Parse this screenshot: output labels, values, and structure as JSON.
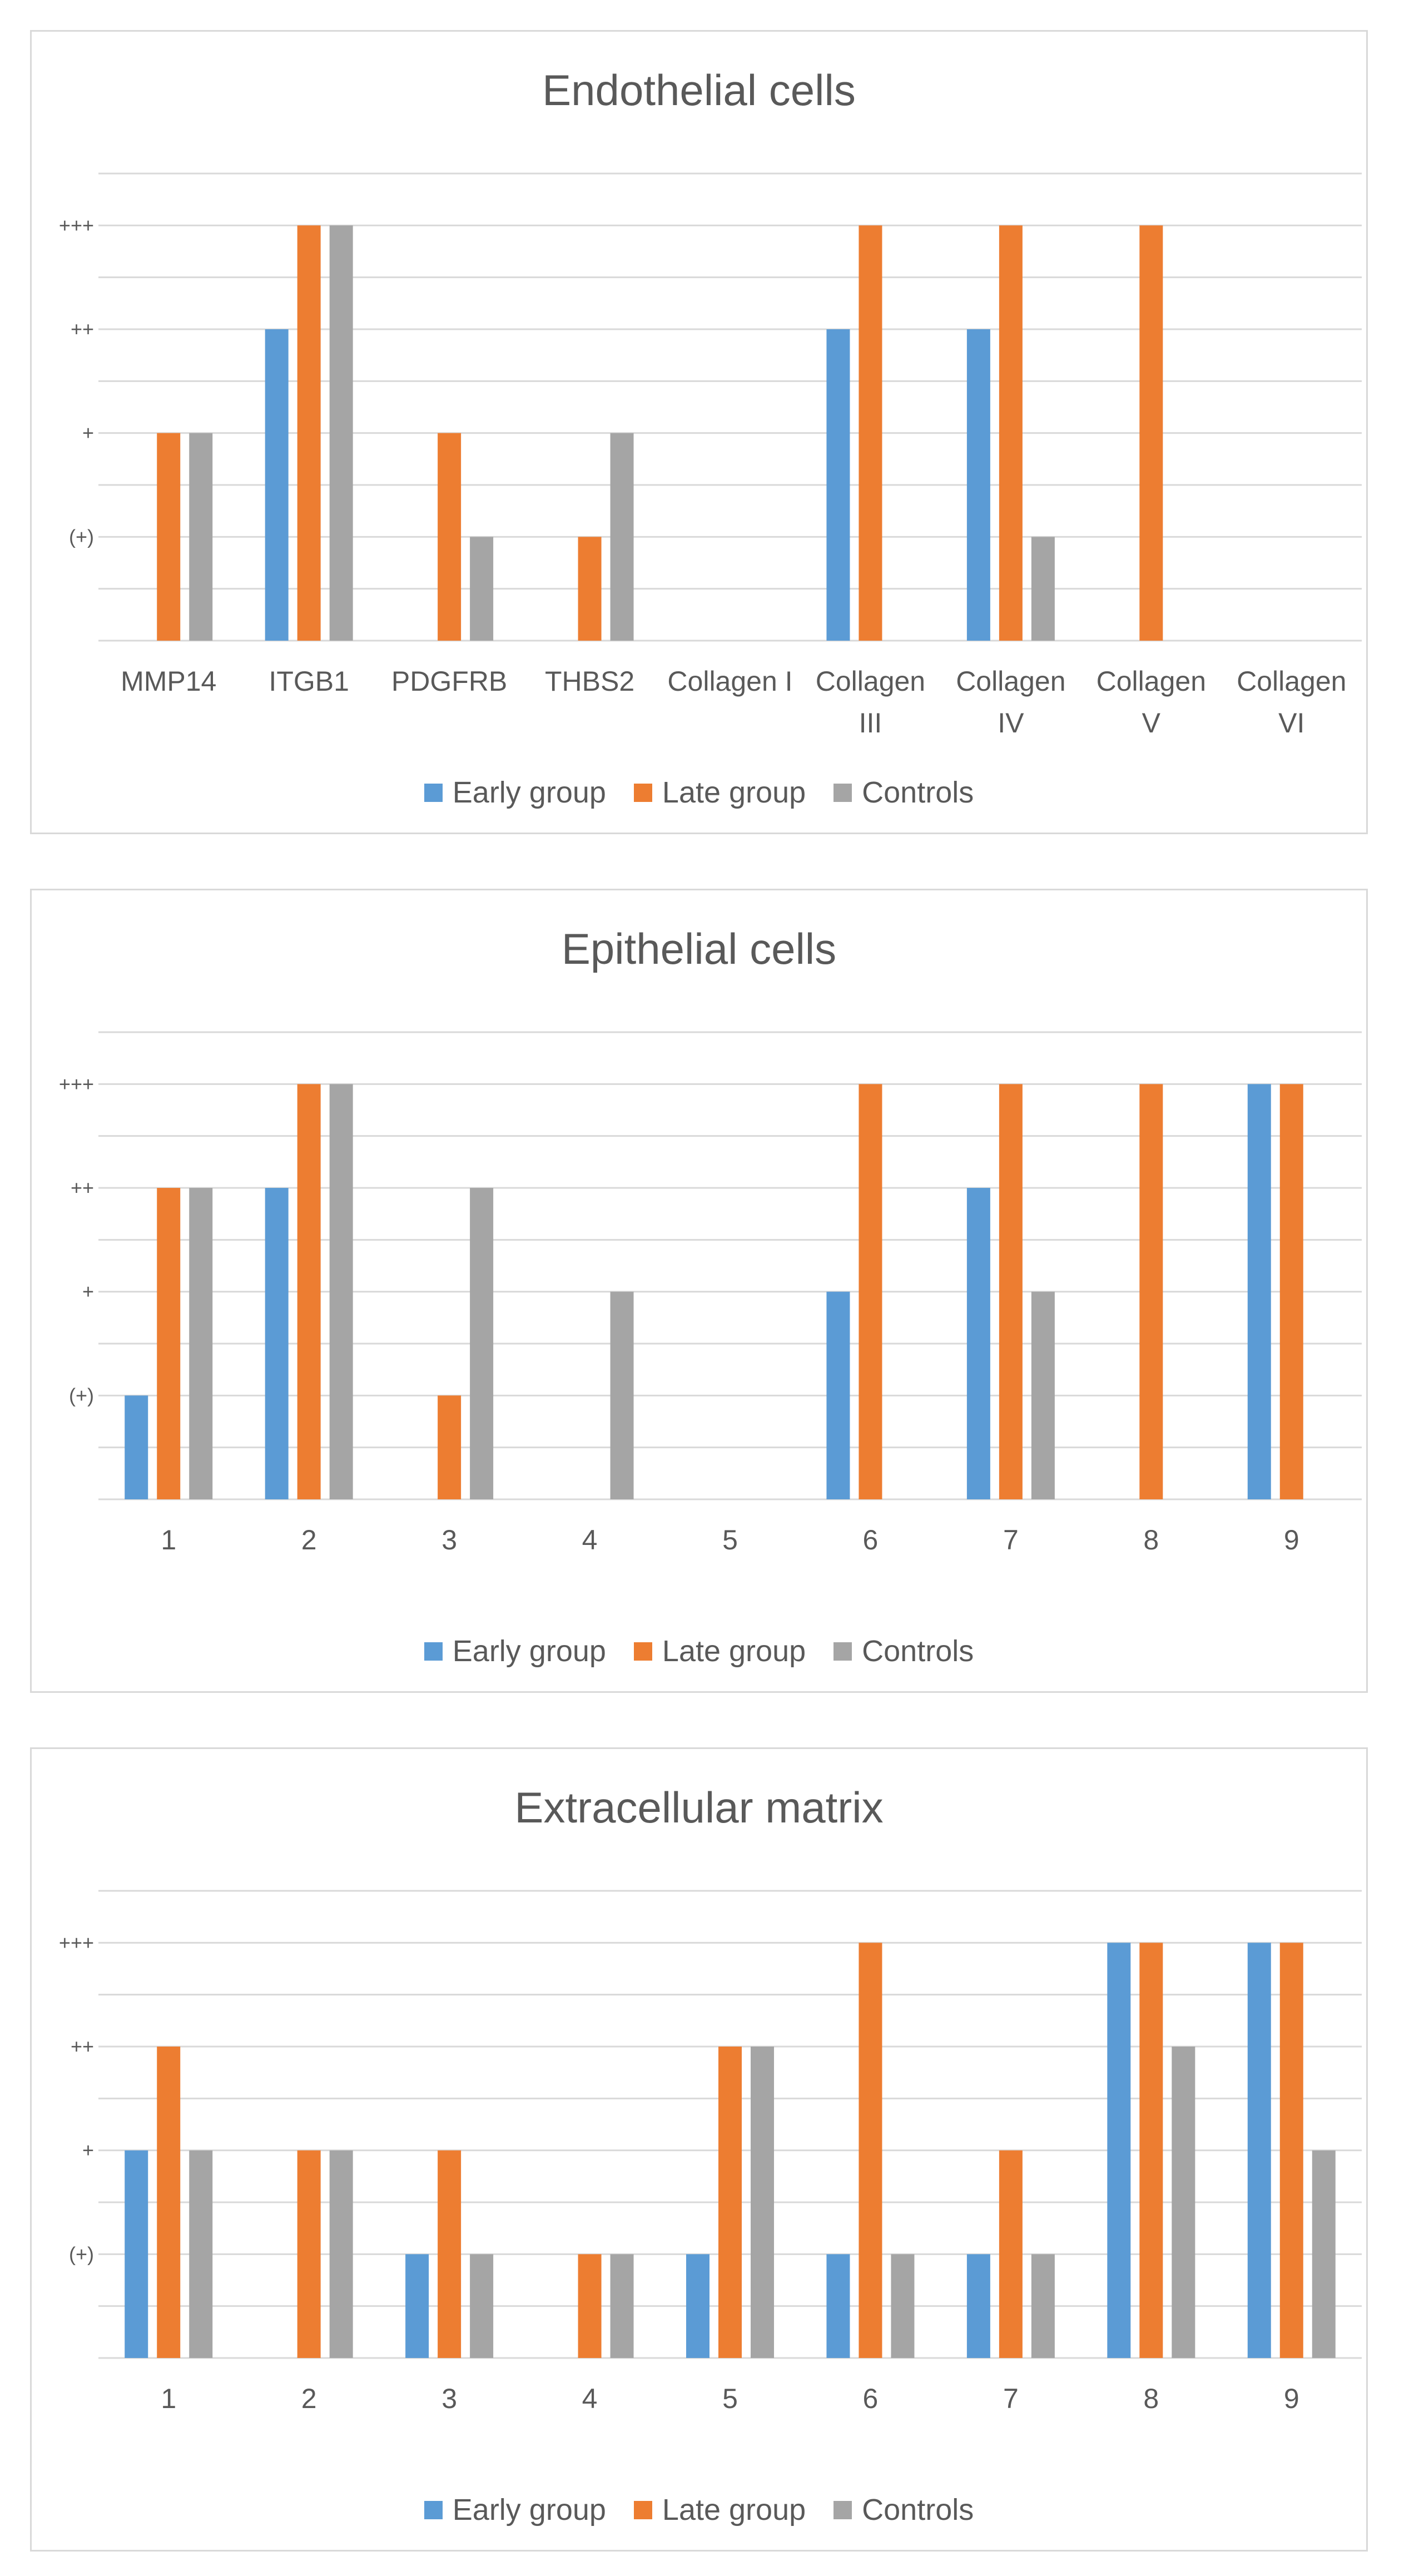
{
  "chart_data": [
    {
      "type": "bar",
      "title": "Endothelial cells",
      "categories": [
        [
          "MMP14"
        ],
        [
          "ITGB1"
        ],
        [
          "PDGFRB"
        ],
        [
          "THBS2"
        ],
        [
          "Collagen I"
        ],
        [
          "Collagen",
          "III"
        ],
        [
          "Collagen",
          "IV"
        ],
        [
          "Collagen",
          "V"
        ],
        [
          "Collagen",
          "VI"
        ]
      ],
      "y_tick_labels": [
        "",
        "(+)",
        "+",
        "++",
        "+++"
      ],
      "ylim": [
        0,
        4.5
      ],
      "series": [
        {
          "name": "Early group",
          "values": [
            0,
            3,
            0,
            0,
            0,
            3,
            3,
            0,
            0
          ]
        },
        {
          "name": "Late group",
          "values": [
            2,
            4,
            2,
            1,
            0,
            4,
            4,
            4,
            0
          ]
        },
        {
          "name": "Controls",
          "values": [
            2,
            4,
            1,
            2,
            0,
            0,
            1,
            0,
            0
          ]
        }
      ]
    },
    {
      "type": "bar",
      "title": "Epithelial cells",
      "categories": [
        [
          "1"
        ],
        [
          "2"
        ],
        [
          "3"
        ],
        [
          "4"
        ],
        [
          "5"
        ],
        [
          "6"
        ],
        [
          "7"
        ],
        [
          "8"
        ],
        [
          "9"
        ]
      ],
      "y_tick_labels": [
        "",
        "(+)",
        "+",
        "++",
        "+++"
      ],
      "ylim": [
        0,
        4.5
      ],
      "series": [
        {
          "name": "Early group",
          "values": [
            1,
            3,
            0,
            0,
            0,
            2,
            3,
            0,
            4
          ]
        },
        {
          "name": "Late group",
          "values": [
            3,
            4,
            1,
            0,
            0,
            4,
            4,
            4,
            4
          ]
        },
        {
          "name": "Controls",
          "values": [
            3,
            4,
            3,
            2,
            0,
            0,
            2,
            0,
            0
          ]
        }
      ]
    },
    {
      "type": "bar",
      "title": "Extracellular matrix",
      "categories": [
        [
          "1"
        ],
        [
          "2"
        ],
        [
          "3"
        ],
        [
          "4"
        ],
        [
          "5"
        ],
        [
          "6"
        ],
        [
          "7"
        ],
        [
          "8"
        ],
        [
          "9"
        ]
      ],
      "y_tick_labels": [
        "",
        "(+)",
        "+",
        "++",
        "+++"
      ],
      "ylim": [
        0,
        4.5
      ],
      "series": [
        {
          "name": "Early group",
          "values": [
            2,
            0,
            1,
            0,
            1,
            1,
            1,
            4,
            4
          ]
        },
        {
          "name": "Late group",
          "values": [
            3,
            2,
            2,
            1,
            3,
            4,
            2,
            4,
            4
          ]
        },
        {
          "name": "Controls",
          "values": [
            2,
            2,
            1,
            1,
            3,
            1,
            1,
            3,
            2
          ]
        }
      ]
    }
  ],
  "colors": {
    "Early group": "#5b9bd5",
    "Late group": "#ed7d31",
    "Controls": "#a5a5a5",
    "gridline": "#d9d9d9",
    "text": "#595959"
  }
}
